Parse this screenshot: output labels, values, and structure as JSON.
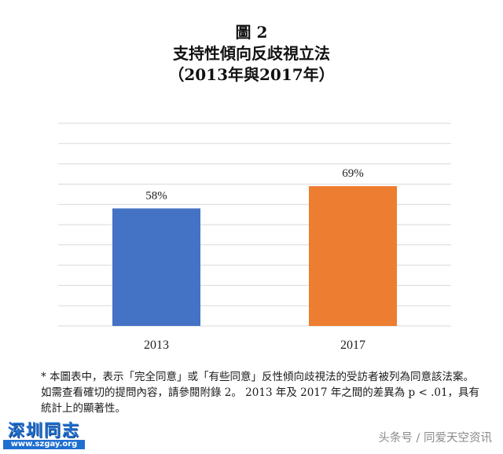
{
  "title": {
    "line1": "圖 2",
    "line2": "支持性傾向反歧視立法",
    "line3": "（2013年與2017年）"
  },
  "chart_data": {
    "type": "bar",
    "categories": [
      "2013",
      "2017"
    ],
    "values": [
      58,
      69
    ],
    "value_labels": [
      "58%",
      "69%"
    ],
    "colors": [
      "#4472c4",
      "#ed7d31"
    ],
    "ylim": [
      0,
      100
    ],
    "grid": true,
    "legend": "none"
  },
  "footnote": "* 本圖表中，表示「完全同意」或「有些同意」反性傾向歧視法的受訪者被列為同意該法案。 如需查看確切的提問內容，請參閱附錄 2。 2013 年及 2017 年之間的差異為 p < .01，具有統計上的顯著性。",
  "logo": {
    "name": "深圳同志",
    "url": "www.szgay.org"
  },
  "watermark": "头条号 / 同爱天空资讯"
}
